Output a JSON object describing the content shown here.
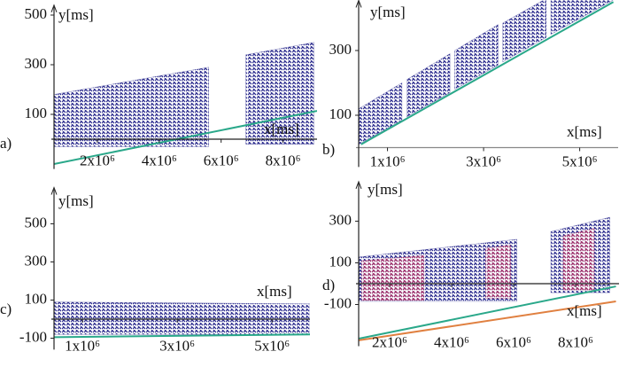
{
  "chart_data": [
    {
      "type": "scatter-area",
      "label": "a)",
      "xlabel": "x[ms]",
      "ylabel": "y[ms]",
      "xlim": [
        600000,
        9100000
      ],
      "ylim": [
        -120,
        540
      ],
      "xticks": [
        {
          "value": 2000000,
          "label": "2x10⁶"
        },
        {
          "value": 4000000,
          "label": "4x10⁶"
        },
        {
          "value": 6000000,
          "label": "6x10⁶"
        },
        {
          "value": 8000000,
          "label": "8x10⁶"
        }
      ],
      "yticks": [
        500,
        300,
        100
      ],
      "clouds": [
        {
          "color": "#2e2e8f",
          "x": [
            600000,
            5600000
          ],
          "low": [
            -30,
            -30
          ],
          "high": [
            180,
            290
          ]
        },
        {
          "color": "#2e2e8f",
          "x": [
            6800000,
            9000000
          ],
          "low": [
            -20,
            -20
          ],
          "high": [
            340,
            390
          ]
        }
      ],
      "lines": [
        {
          "color": "#2aa88a",
          "x": [
            600000,
            9100000
          ],
          "y": [
            -100,
            114
          ]
        }
      ]
    },
    {
      "type": "scatter-area",
      "label": "b)",
      "xlabel": "x[ms]",
      "ylabel": "y[ms]",
      "xlim": [
        400000,
        5800000
      ],
      "ylim": [
        -60,
        455
      ],
      "xticks": [
        {
          "value": 1000000,
          "label": "1x10⁶"
        },
        {
          "value": 3000000,
          "label": "3x10⁶"
        },
        {
          "value": 5000000,
          "label": "5x10⁶"
        }
      ],
      "yticks": [
        300,
        100
      ],
      "clouds": [
        {
          "color": "#2e2e8f",
          "x": [
            400000,
            1300000
          ],
          "low": [
            10,
            85
          ],
          "high": [
            120,
            200
          ]
        },
        {
          "color": "#2e2e8f",
          "x": [
            1400000,
            2300000
          ],
          "low": [
            95,
            170
          ],
          "high": [
            210,
            290
          ]
        },
        {
          "color": "#2e2e8f",
          "x": [
            2400000,
            3300000
          ],
          "low": [
            180,
            255
          ],
          "high": [
            300,
            380
          ]
        },
        {
          "color": "#2e2e8f",
          "x": [
            3400000,
            4300000
          ],
          "low": [
            265,
            340
          ],
          "high": [
            385,
            460
          ]
        },
        {
          "color": "#2e2e8f",
          "x": [
            4400000,
            5750000
          ],
          "low": [
            350,
            460
          ],
          "high": [
            470,
            560
          ]
        }
      ],
      "lines": [
        {
          "color": "#2aa88a",
          "x": [
            450000,
            5700000
          ],
          "y": [
            10,
            450
          ]
        }
      ]
    },
    {
      "type": "scatter-area",
      "label": "c)",
      "xlabel": "x[ms]",
      "ylabel": "y[ms]",
      "xlim": [
        400000,
        5800000
      ],
      "ylim": [
        -160,
        690
      ],
      "xticks": [
        {
          "value": 1000000,
          "label": "1x10⁶"
        },
        {
          "value": 3000000,
          "label": "3x10⁶"
        },
        {
          "value": 5000000,
          "label": "5x10⁶"
        }
      ],
      "yticks": [
        500,
        300,
        100,
        -100
      ],
      "clouds": [
        {
          "color": "#2e2e8f",
          "x": [
            400000,
            5800000
          ],
          "low": [
            -80,
            -80
          ],
          "high": [
            90,
            80
          ]
        }
      ],
      "lines": [
        {
          "color": "#2aa88a",
          "x": [
            400000,
            5800000
          ],
          "y": [
            -95,
            -80
          ]
        }
      ]
    },
    {
      "type": "scatter-area",
      "label": "d)",
      "xlabel": "x[ms]",
      "ylabel": "y[ms]",
      "xlim": [
        1000000,
        9400000
      ],
      "ylim": [
        -300,
        490
      ],
      "xticks": [
        {
          "value": 2000000,
          "label": "2x10⁶"
        },
        {
          "value": 4000000,
          "label": "4x10⁶"
        },
        {
          "value": 6000000,
          "label": "6x10⁶"
        },
        {
          "value": 8000000,
          "label": "8x10⁶"
        }
      ],
      "yticks": [
        300,
        100,
        -100
      ],
      "clouds": [
        {
          "color": "#2e2e8f",
          "x": [
            1000000,
            6100000
          ],
          "low": [
            -85,
            -85
          ],
          "high": [
            128,
            213
          ]
        },
        {
          "color": "#2e2e8f",
          "x": [
            7200000,
            9100000
          ],
          "low": [
            -43,
            -43
          ],
          "high": [
            250,
            319
          ]
        },
        {
          "color": "#a0306a",
          "x": [
            1100000,
            3100000
          ],
          "low": [
            -80,
            -80
          ],
          "high": [
            110,
            135
          ]
        },
        {
          "color": "#a0306a",
          "x": [
            5100000,
            5900000
          ],
          "low": [
            -70,
            -70
          ],
          "high": [
            170,
            185
          ]
        },
        {
          "color": "#a0306a",
          "x": [
            7600000,
            8600000
          ],
          "low": [
            -30,
            -30
          ],
          "high": [
            230,
            265
          ]
        }
      ],
      "lines": [
        {
          "color": "#2aa88a",
          "x": [
            1000000,
            9300000
          ],
          "y": [
            -264,
            -13
          ]
        },
        {
          "color": "#e08040",
          "x": [
            1000000,
            9300000
          ],
          "y": [
            -272,
            -85
          ]
        }
      ]
    }
  ]
}
